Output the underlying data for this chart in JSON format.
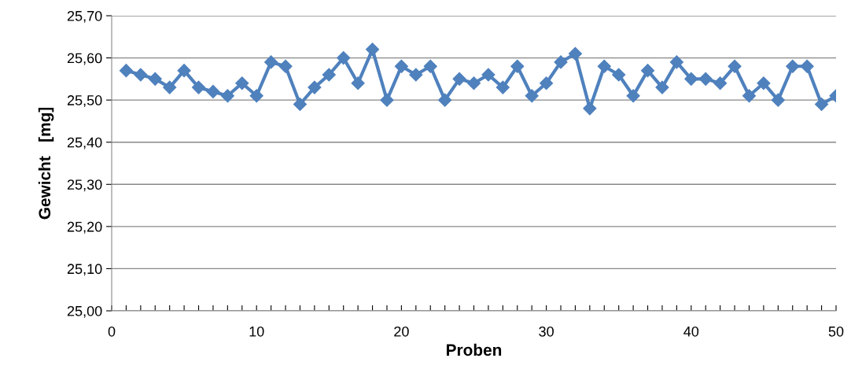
{
  "chart_data": {
    "type": "line",
    "xlabel": "Proben",
    "ylabel": "Gewicht   [mg]",
    "x": [
      1,
      2,
      3,
      4,
      5,
      6,
      7,
      8,
      9,
      10,
      11,
      12,
      13,
      14,
      15,
      16,
      17,
      18,
      19,
      20,
      21,
      22,
      23,
      24,
      25,
      26,
      27,
      28,
      29,
      30,
      31,
      32,
      33,
      34,
      35,
      36,
      37,
      38,
      39,
      40,
      41,
      42,
      43,
      44,
      45,
      46,
      47,
      48,
      49,
      50
    ],
    "series": [
      {
        "color": "#4f81bd",
        "values": [
          25.57,
          25.56,
          25.55,
          25.53,
          25.57,
          25.53,
          25.52,
          25.51,
          25.54,
          25.51,
          25.59,
          25.58,
          25.49,
          25.53,
          25.56,
          25.6,
          25.54,
          25.62,
          25.5,
          25.58,
          25.56,
          25.58,
          25.5,
          25.55,
          25.54,
          25.56,
          25.53,
          25.58,
          25.51,
          25.54,
          25.59,
          25.61,
          25.48,
          25.58,
          25.56,
          25.51,
          25.57,
          25.53,
          25.59,
          25.55,
          25.55,
          25.54,
          25.58,
          25.51,
          25.54,
          25.5,
          25.58,
          25.58,
          25.49,
          25.51
        ]
      }
    ],
    "xlim": [
      0,
      50
    ],
    "xticks": [
      0,
      {
        "value": 1,
        "label": null
      },
      {
        "value": 2,
        "label": null
      },
      {
        "value": 3,
        "label": null
      },
      {
        "value": 4,
        "label": null
      },
      {
        "value": 5,
        "label": null
      },
      {
        "value": 6,
        "label": null
      },
      {
        "value": 7,
        "label": null
      },
      {
        "value": 8,
        "label": null
      },
      {
        "value": 9,
        "label": null
      },
      10,
      {
        "value": 11,
        "label": null
      },
      {
        "value": 12,
        "label": null
      },
      {
        "value": 13,
        "label": null
      },
      {
        "value": 14,
        "label": null
      },
      {
        "value": 15,
        "label": null
      },
      {
        "value": 16,
        "label": null
      },
      {
        "value": 17,
        "label": null
      },
      {
        "value": 18,
        "label": null
      },
      {
        "value": 19,
        "label": null
      },
      20,
      {
        "value": 21,
        "label": null
      },
      {
        "value": 22,
        "label": null
      },
      {
        "value": 23,
        "label": null
      },
      {
        "value": 24,
        "label": null
      },
      {
        "value": 25,
        "label": null
      },
      {
        "value": 26,
        "label": null
      },
      {
        "value": 27,
        "label": null
      },
      {
        "value": 28,
        "label": null
      },
      {
        "value": 29,
        "label": null
      },
      30,
      {
        "value": 31,
        "label": null
      },
      {
        "value": 32,
        "label": null
      },
      {
        "value": 33,
        "label": null
      },
      {
        "value": 34,
        "label": null
      },
      {
        "value": 35,
        "label": null
      },
      {
        "value": 36,
        "label": null
      },
      {
        "value": 37,
        "label": null
      },
      {
        "value": 38,
        "label": null
      },
      {
        "value": 39,
        "label": null
      },
      40,
      {
        "value": 41,
        "label": null
      },
      {
        "value": 42,
        "label": null
      },
      {
        "value": 43,
        "label": null
      },
      {
        "value": 44,
        "label": null
      },
      {
        "value": 45,
        "label": null
      },
      {
        "value": 46,
        "label": null
      },
      {
        "value": 47,
        "label": null
      },
      {
        "value": 48,
        "label": null
      },
      {
        "value": 49,
        "label": null
      },
      50
    ],
    "ylim": [
      25.0,
      25.7
    ],
    "yticks": [
      {
        "value": 25.0,
        "label": "25,00"
      },
      {
        "value": 25.1,
        "label": "25,10"
      },
      {
        "value": 25.2,
        "label": "25,20"
      },
      {
        "value": 25.3,
        "label": "25,30"
      },
      {
        "value": 25.4,
        "label": "25,40"
      },
      {
        "value": 25.5,
        "label": "25,50"
      },
      {
        "value": 25.6,
        "label": "25,60"
      },
      {
        "value": 25.7,
        "label": "25,70"
      }
    ],
    "grid": "y",
    "marker": "diamond",
    "line_style": "solid",
    "legend": false
  }
}
